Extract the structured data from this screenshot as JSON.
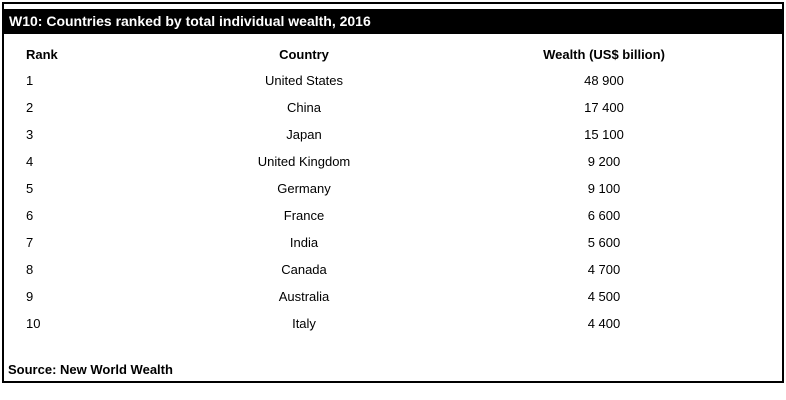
{
  "header": {
    "title": "W10: Countries ranked by total individual wealth, 2016"
  },
  "table": {
    "columns": [
      "Rank",
      "Country",
      "Wealth (US$ billion)"
    ],
    "rows": [
      {
        "rank": "1",
        "country": "United States",
        "wealth": "48 900"
      },
      {
        "rank": "2",
        "country": "China",
        "wealth": "17 400"
      },
      {
        "rank": "3",
        "country": "Japan",
        "wealth": "15 100"
      },
      {
        "rank": "4",
        "country": "United Kingdom",
        "wealth": "9 200"
      },
      {
        "rank": "5",
        "country": "Germany",
        "wealth": "9 100"
      },
      {
        "rank": "6",
        "country": "France",
        "wealth": "6 600"
      },
      {
        "rank": "7",
        "country": "India",
        "wealth": "5 600"
      },
      {
        "rank": "8",
        "country": "Canada",
        "wealth": "4 700"
      },
      {
        "rank": "9",
        "country": "Australia",
        "wealth": "4 500"
      },
      {
        "rank": "10",
        "country": "Italy",
        "wealth": "4 400"
      }
    ]
  },
  "footer": {
    "source": "Source: New World Wealth"
  },
  "colors": {
    "title_bar_bg": "#000000",
    "title_text": "#ffffff",
    "border": "#000000",
    "body_text": "#000000",
    "background": "#ffffff"
  },
  "chart_data": {
    "type": "table",
    "title": "W10: Countries ranked by total individual wealth, 2016",
    "columns": [
      "Rank",
      "Country",
      "Wealth (US$ billion)"
    ],
    "rows": [
      [
        1,
        "United States",
        48900
      ],
      [
        2,
        "China",
        17400
      ],
      [
        3,
        "Japan",
        15100
      ],
      [
        4,
        "United Kingdom",
        9200
      ],
      [
        5,
        "Germany",
        9100
      ],
      [
        6,
        "France",
        6600
      ],
      [
        7,
        "India",
        5600
      ],
      [
        8,
        "Canada",
        4700
      ],
      [
        9,
        "Australia",
        4500
      ],
      [
        10,
        "Italy",
        4400
      ]
    ],
    "source": "Source: New World Wealth",
    "layout": "ranked table, values use thin-space thousands separator, no gridlines between rows"
  }
}
